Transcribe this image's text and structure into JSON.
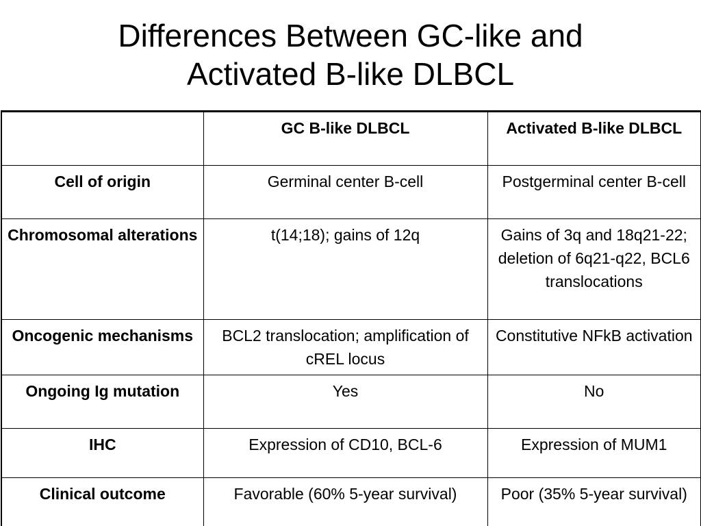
{
  "title": {
    "line1": "Differences Between GC-like and",
    "line2": "Activated B-like DLBCL"
  },
  "table": {
    "headers": [
      "",
      "GC B-like DLBCL",
      "Activated B-like DLBCL"
    ],
    "rows": [
      {
        "label": "Cell of origin",
        "gc": "Germinal center B-cell",
        "abc": "Postgerminal center B-cell"
      },
      {
        "label": "Chromosomal alterations",
        "gc": "t(14;18); gains of 12q",
        "abc": "Gains of 3q and 18q21-22; deletion of 6q21-q22, BCL6 translocations"
      },
      {
        "label": "Oncogenic mechanisms",
        "gc": "BCL2 translocation; amplification of cREL locus",
        "abc": "Constitutive NFkB activation"
      },
      {
        "label": "Ongoing Ig mutation",
        "gc": "Yes",
        "abc": "No"
      },
      {
        "label": "IHC",
        "gc": "Expression of CD10, BCL-6",
        "abc": "Expression of MUM1"
      },
      {
        "label": "Clinical outcome",
        "gc": "Favorable (60% 5-year survival)",
        "abc": "Poor (35% 5-year survival)"
      }
    ]
  }
}
